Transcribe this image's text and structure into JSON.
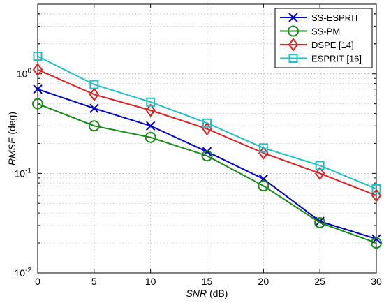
{
  "chart_data": {
    "type": "line",
    "title": "",
    "xlabel": {
      "italic": "SNR",
      "unit": " (dB)"
    },
    "ylabel": {
      "italic": "RMSE",
      "unit": " (deg)"
    },
    "x": [
      0,
      5,
      10,
      15,
      20,
      25,
      30
    ],
    "xlim": [
      0,
      30
    ],
    "ylim": [
      0.01,
      5
    ],
    "yscale": "log",
    "grid": true,
    "legend_position": "top-right",
    "x_ticks": [
      "0",
      "5",
      "10",
      "15",
      "20",
      "25",
      "30"
    ],
    "y_ticks": [
      {
        "value": 1,
        "base": "10",
        "exp": "0"
      },
      {
        "value": 0.1,
        "base": "10",
        "exp": "-1"
      },
      {
        "value": 0.01,
        "base": "10",
        "exp": "-2"
      }
    ],
    "series": [
      {
        "name": "SS-ESPRIT",
        "color": "#0000cc",
        "marker": "x",
        "values": [
          0.7,
          0.45,
          0.3,
          0.165,
          0.088,
          0.033,
          0.022
        ]
      },
      {
        "name": "SS-PM",
        "color": "#1a8a1a",
        "marker": "circle",
        "values": [
          0.5,
          0.3,
          0.23,
          0.15,
          0.075,
          0.032,
          0.02
        ]
      },
      {
        "name": "DSPE [14]",
        "color": "#e02020",
        "marker": "diamond",
        "values": [
          1.1,
          0.62,
          0.43,
          0.28,
          0.16,
          0.1,
          0.06
        ]
      },
      {
        "name": "ESPRIT [16]",
        "color": "#20c0c8",
        "marker": "square",
        "values": [
          1.5,
          0.78,
          0.52,
          0.32,
          0.18,
          0.12,
          0.07
        ]
      }
    ]
  }
}
